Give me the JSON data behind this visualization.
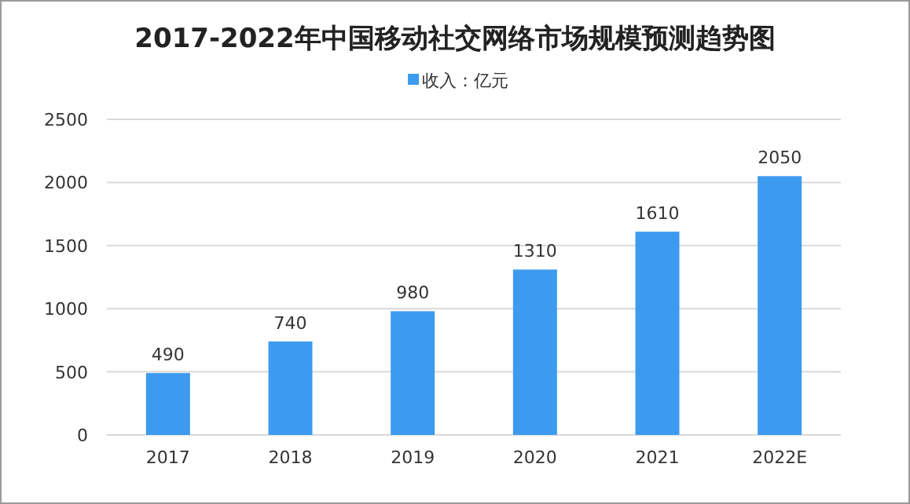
{
  "chart_data": {
    "type": "bar",
    "title": "2017-2022年中国移动社交网络市场规模预测趋势图",
    "categories": [
      "2017",
      "2018",
      "2019",
      "2020",
      "2021",
      "2022E"
    ],
    "series": [
      {
        "name": "收入：亿元",
        "color": "#3d9bef",
        "values": [
          490,
          740,
          980,
          1310,
          1610,
          2050
        ]
      }
    ],
    "ylim": [
      0,
      2500
    ],
    "yticks": [
      0,
      500,
      1000,
      1500,
      2000,
      2500
    ],
    "grid": "y",
    "legend": "top",
    "data_labels": true
  }
}
